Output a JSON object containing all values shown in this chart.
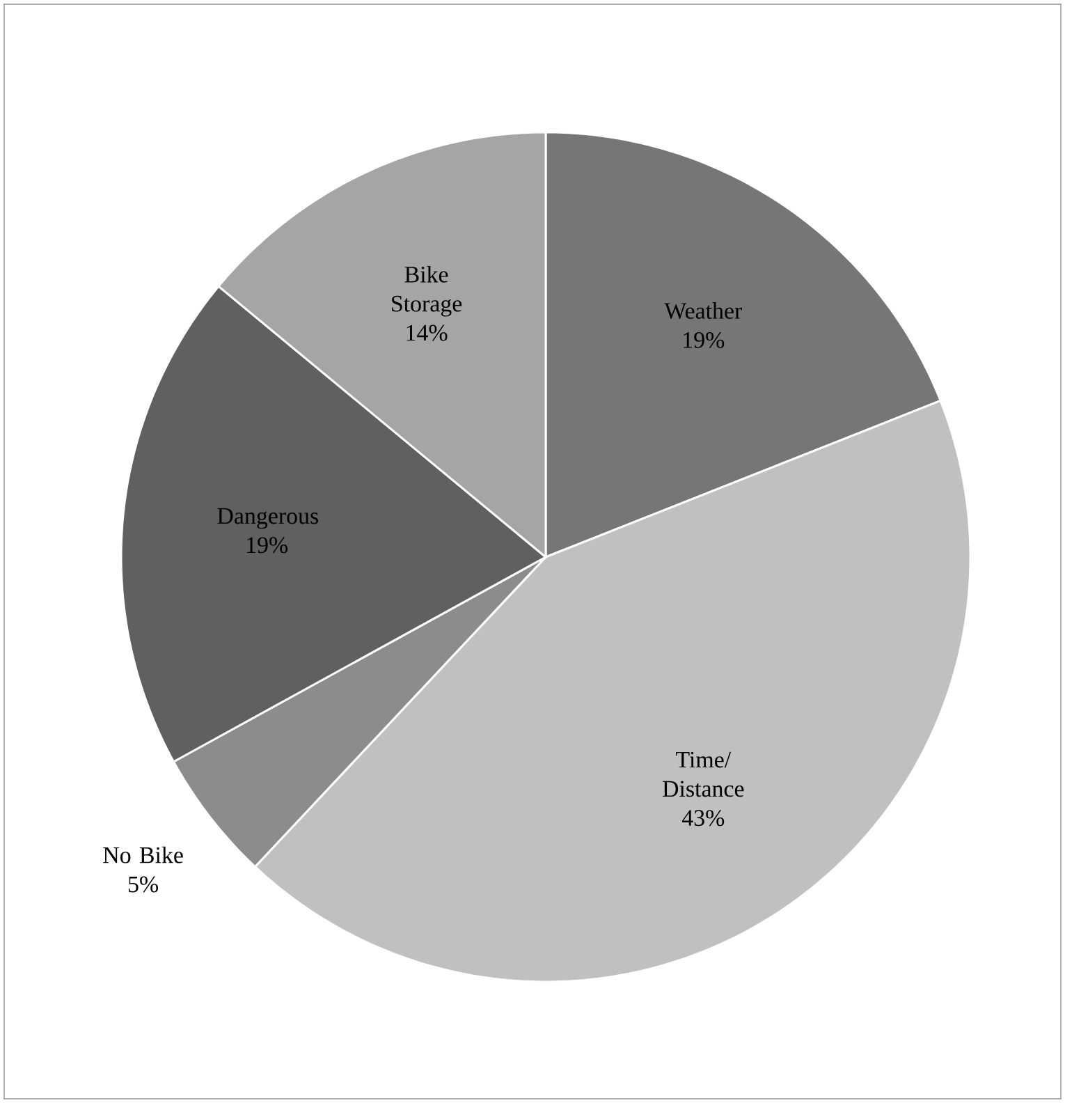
{
  "chart_data": {
    "type": "pie",
    "categories": [
      "Weather",
      "Time/ Distance",
      "No Bike",
      "Dangerous",
      "Bike Storage"
    ],
    "values": [
      19,
      43,
      5,
      19,
      14
    ],
    "value_labels": [
      "19%",
      "43%",
      "5%",
      "19%",
      "14%"
    ],
    "colors": [
      "#767676",
      "#c0c0c0",
      "#8c8c8c",
      "#606060",
      "#a5a5a5"
    ]
  }
}
